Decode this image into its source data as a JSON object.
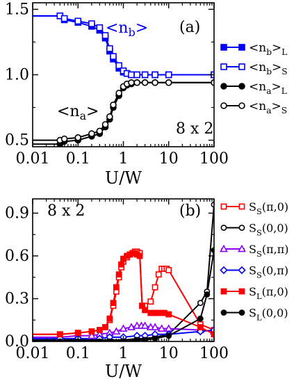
{
  "chart_data": [
    {
      "type": "line",
      "panel_label": "(a)",
      "size_label": "8 x 2",
      "xlabel": "U/W",
      "x_scale": "log",
      "xlim": [
        0.01,
        100
      ],
      "ylim": [
        0.45,
        1.55
      ],
      "xticks": [
        0.01,
        0.1,
        1,
        10,
        100
      ],
      "xtick_labels": [
        "0.01",
        "0.1",
        "1",
        "10",
        "100"
      ],
      "yticks": [
        0.5,
        1.0,
        1.5
      ],
      "ytick_labels": [
        "0.5",
        "1.0",
        "1.5"
      ],
      "annotations": [
        {
          "text": "<n",
          "sub": "b",
          "tail": ">",
          "color": "#0000ff"
        },
        {
          "text": "<n",
          "sub": "a",
          "tail": ">",
          "color": "#000000"
        }
      ],
      "series": [
        {
          "name_main": "<n",
          "name_sub": "b",
          "name_tail": ">",
          "name_post": "L",
          "color": "#0000ff",
          "marker": "square",
          "filled": true,
          "x": [
            0.001,
            0.04,
            0.05,
            0.1,
            0.2,
            0.3,
            0.4,
            0.5,
            0.6,
            0.8,
            1.0,
            1.2,
            1.5,
            2,
            3,
            5,
            10,
            100
          ],
          "y": [
            1.45,
            1.45,
            1.42,
            1.4,
            1.37,
            1.34,
            1.28,
            1.18,
            1.12,
            1.05,
            1.02,
            1.01,
            1.0,
            1.0,
            1.0,
            1.0,
            1.0,
            1.0
          ]
        },
        {
          "name_main": "<n",
          "name_sub": "b",
          "name_tail": ">",
          "name_post": "S",
          "color": "#0000ff",
          "marker": "square",
          "filled": false,
          "x": [
            0.001,
            0.04,
            0.05,
            0.1,
            0.2,
            0.3,
            0.4,
            0.5,
            0.6,
            0.8,
            1.0,
            1.2,
            1.5,
            2,
            3,
            5,
            10,
            100
          ],
          "y": [
            1.45,
            1.45,
            1.43,
            1.41,
            1.39,
            1.36,
            1.3,
            1.2,
            1.14,
            1.07,
            1.03,
            1.01,
            1.0,
            1.0,
            1.0,
            1.0,
            1.0,
            1.0
          ]
        },
        {
          "name_main": "<n",
          "name_sub": "a",
          "name_tail": ">",
          "name_post": "L",
          "color": "#000000",
          "marker": "circle",
          "filled": true,
          "x": [
            0.001,
            0.04,
            0.05,
            0.1,
            0.2,
            0.3,
            0.4,
            0.5,
            0.6,
            0.8,
            1.0,
            1.2,
            1.5,
            2,
            3,
            5,
            10,
            100
          ],
          "y": [
            0.47,
            0.47,
            0.49,
            0.5,
            0.53,
            0.55,
            0.6,
            0.66,
            0.75,
            0.84,
            0.9,
            0.92,
            0.93,
            0.94,
            0.94,
            0.94,
            0.94,
            0.94
          ]
        },
        {
          "name_main": "<n",
          "name_sub": "a",
          "name_tail": ">",
          "name_post": "S",
          "color": "#000000",
          "marker": "circle",
          "filled": false,
          "x": [
            0.001,
            0.04,
            0.05,
            0.1,
            0.2,
            0.3,
            0.4,
            0.5,
            0.6,
            0.8,
            1.0,
            1.2,
            1.5,
            2,
            3,
            5,
            10,
            100
          ],
          "y": [
            0.5,
            0.5,
            0.51,
            0.52,
            0.55,
            0.57,
            0.62,
            0.68,
            0.77,
            0.86,
            0.91,
            0.93,
            0.94,
            0.94,
            0.94,
            0.94,
            0.94,
            0.94
          ]
        }
      ]
    },
    {
      "type": "line",
      "panel_label": "(b)",
      "size_label": "8 x 2",
      "xlabel": "U/W",
      "x_scale": "log",
      "xlim": [
        0.01,
        100
      ],
      "ylim": [
        0,
        1.0
      ],
      "xticks": [
        0.01,
        0.1,
        1,
        10,
        100
      ],
      "xtick_labels": [
        "0.01",
        "0.1",
        "1",
        "10",
        "100"
      ],
      "yticks": [
        0,
        0.3,
        0.6,
        0.9
      ],
      "ytick_labels": [
        "0.0",
        "0.3",
        "0.6",
        "0.9"
      ],
      "series": [
        {
          "name_main": "S",
          "name_sub": "S",
          "name_post": "(π,0)",
          "color": "#ff0000",
          "marker": "square",
          "filled": false,
          "x": [
            0.001,
            0.04,
            0.1,
            0.2,
            0.3,
            0.4,
            0.5,
            0.6,
            0.7,
            0.8,
            0.9,
            1.0,
            1.2,
            1.4,
            1.6,
            1.8,
            2.0,
            2.3,
            2.6,
            3.0,
            4,
            5,
            6,
            7,
            8,
            9,
            10,
            50,
            100
          ],
          "y": [
            0.05,
            0.05,
            0.06,
            0.07,
            0.08,
            0.1,
            0.15,
            0.25,
            0.35,
            0.45,
            0.52,
            0.56,
            0.59,
            0.61,
            0.62,
            0.63,
            0.63,
            0.62,
            0.25,
            0.25,
            0.28,
            0.38,
            0.47,
            0.51,
            0.51,
            0.51,
            0.5,
            0.12,
            0.08
          ]
        },
        {
          "name_main": "S",
          "name_sub": "S",
          "name_post": "(0,0)",
          "color": "#000000",
          "marker": "circle",
          "filled": false,
          "x": [
            0.001,
            0.04,
            0.1,
            0.3,
            0.5,
            1.0,
            2.0,
            3.0,
            5,
            10,
            50,
            70,
            100
          ],
          "y": [
            0.01,
            0.01,
            0.01,
            0.01,
            0.01,
            0.01,
            0.02,
            0.02,
            0.03,
            0.05,
            0.27,
            0.35,
            0.96
          ]
        },
        {
          "name_main": "S",
          "name_sub": "S",
          "name_post": "(π,π)",
          "color": "#8b00ff",
          "marker": "triangle",
          "filled": false,
          "x": [
            0.001,
            0.04,
            0.1,
            0.2,
            0.3,
            0.5,
            0.7,
            1.0,
            1.5,
            2.0,
            2.5,
            3.0,
            4,
            5,
            7,
            10,
            50,
            100
          ],
          "y": [
            0.03,
            0.03,
            0.04,
            0.04,
            0.05,
            0.06,
            0.07,
            0.09,
            0.1,
            0.11,
            0.11,
            0.11,
            0.1,
            0.1,
            0.09,
            0.09,
            0.08,
            0.07
          ]
        },
        {
          "name_main": "S",
          "name_sub": "S",
          "name_post": "(0,π)",
          "color": "#0000ff",
          "marker": "diamond",
          "filled": false,
          "x": [
            0.001,
            0.04,
            0.1,
            0.3,
            0.5,
            1.0,
            2.0,
            3.0,
            5,
            10,
            50,
            100
          ],
          "y": [
            0.02,
            0.02,
            0.02,
            0.02,
            0.03,
            0.03,
            0.04,
            0.04,
            0.05,
            0.05,
            0.07,
            0.08
          ]
        },
        {
          "name_main": "S",
          "name_sub": "L",
          "name_post": "(π,0)",
          "color": "#ff0000",
          "marker": "square",
          "filled": true,
          "x": [
            0.001,
            0.04,
            0.1,
            0.2,
            0.3,
            0.4,
            0.5,
            0.6,
            0.7,
            0.8,
            0.9,
            1.0,
            1.2,
            1.4,
            1.6,
            1.8,
            2.0,
            2.3,
            2.6,
            3.0,
            4,
            5,
            6,
            8,
            10,
            50,
            100
          ],
          "y": [
            0.05,
            0.05,
            0.06,
            0.07,
            0.08,
            0.1,
            0.16,
            0.27,
            0.38,
            0.47,
            0.54,
            0.58,
            0.6,
            0.61,
            0.62,
            0.62,
            0.61,
            0.6,
            0.25,
            0.22,
            0.2,
            0.2,
            0.2,
            0.2,
            0.19,
            0.1,
            0.05
          ]
        },
        {
          "name_main": "S",
          "name_sub": "L",
          "name_post": "(0,0)",
          "color": "#000000",
          "marker": "circle",
          "filled": true,
          "x": [
            0.001,
            0.04,
            0.1,
            0.3,
            0.5,
            1.0,
            2.0,
            3.0,
            5,
            10,
            50,
            70,
            100
          ],
          "y": [
            0.0,
            0.0,
            0.0,
            0.0,
            0.0,
            0.0,
            0.01,
            0.01,
            0.02,
            0.04,
            0.16,
            0.33,
            0.64
          ]
        }
      ]
    }
  ]
}
